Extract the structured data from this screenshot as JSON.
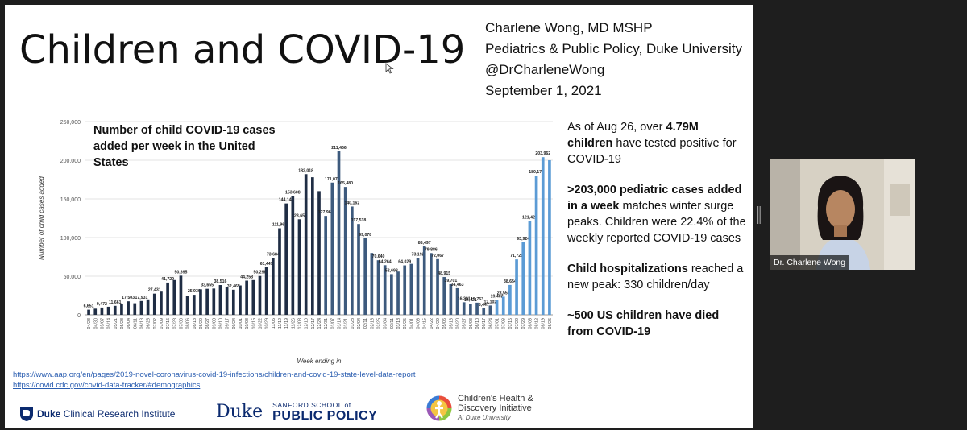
{
  "slide": {
    "title": "Children and COVID-19",
    "author_lines": [
      "Charlene Wong, MD MSHP",
      "Pediatrics & Public Policy, Duke University",
      "@DrCharleneWong",
      "September 1, 2021"
    ],
    "chart_heading": "Number of child COVID-19 cases added per week in the United States",
    "facts": [
      {
        "parts": [
          {
            "t": "As of Aug 26, over ",
            "b": false
          },
          {
            "t": "4.79M children",
            "b": true
          },
          {
            "t": " have tested positive for COVID-19",
            "b": false
          }
        ]
      },
      {
        "parts": [
          {
            "t": ">203,000 pediatric cases added in a week",
            "b": true
          },
          {
            "t": " matches winter surge peaks. Children were 22.4% of the weekly reported COVID-19 cases",
            "b": false
          }
        ]
      },
      {
        "parts": [
          {
            "t": "Child hospitalizations",
            "b": true
          },
          {
            "t": " reached a new peak: 330 children/day",
            "b": false
          }
        ]
      },
      {
        "parts": [
          {
            "t": "~500 US children have died from COVID-19",
            "b": true
          }
        ]
      }
    ],
    "links": [
      "https://www.aap.org/en/pages/2019-novel-coronavirus-covid-19-infections/children-and-covid-19-state-level-data-report",
      "https://covid.cdc.gov/covid-data-tracker/#demographics"
    ],
    "logos": {
      "dcri_prefix": "Duke",
      "dcri_rest": "Clinical Research Institute",
      "duke_word": "Duke",
      "sps_top": "SANFORD SCHOOL of",
      "sps_bottom": "PUBLIC POLICY",
      "chdi_line1": "Children's Health &",
      "chdi_line2": "Discovery Initiative",
      "chdi_line3": "At Duke University"
    }
  },
  "video": {
    "participant_name": "Dr. Charlene Wong"
  },
  "chart_data": {
    "type": "bar",
    "title": "Number of child COVID-19 cases added per week in the United States",
    "xlabel": "Week ending in",
    "ylabel": "Number of child cases added",
    "ylim": [
      0,
      250000
    ],
    "yticks": [
      0,
      50000,
      100000,
      150000,
      200000,
      250000
    ],
    "ytick_labels": [
      "0",
      "50,000",
      "100,000",
      "150,000",
      "200,000",
      "250,000"
    ],
    "grid": true,
    "categories": [
      "04/23",
      "04/30",
      "05/07",
      "05/14",
      "05/21",
      "05/28",
      "06/04",
      "06/11",
      "06/18",
      "06/25",
      "07/02",
      "07/09",
      "07/16",
      "07/23",
      "07/30",
      "08/06",
      "08/13",
      "08/20",
      "08/27",
      "09/03",
      "09/10",
      "09/17",
      "09/24",
      "10/01",
      "10/08",
      "10/15",
      "10/22",
      "10/29",
      "11/05",
      "11/12",
      "11/19",
      "11/26",
      "12/03",
      "12/10",
      "12/17",
      "12/24",
      "12/31",
      "01/07",
      "01/14",
      "01/21",
      "01/28",
      "02/04",
      "02/11",
      "02/18",
      "02/25",
      "03/04",
      "03/11",
      "03/18",
      "03/25",
      "04/01",
      "04/08",
      "04/15",
      "04/22",
      "04/29",
      "05/06",
      "05/13",
      "05/20",
      "05/27",
      "06/03",
      "06/10",
      "06/17",
      "06/24",
      "07/01",
      "07/08",
      "07/15",
      "07/22",
      "07/29",
      "08/05",
      "08/12",
      "08/19",
      "08/26"
    ],
    "values": [
      6651,
      8000,
      9472,
      10500,
      11661,
      14000,
      17503,
      15000,
      17931,
      20000,
      27431,
      30000,
      41729,
      45000,
      50695,
      25000,
      25936,
      33000,
      33655,
      34000,
      38516,
      36000,
      32465,
      38000,
      44258,
      45000,
      50296,
      61447,
      73684,
      111963,
      144140,
      153608,
      123658,
      182018,
      178000,
      160000,
      127966,
      171079,
      211466,
      165480,
      140162,
      117518,
      99078,
      80000,
      70640,
      64264,
      52698,
      56000,
      64029,
      66000,
      73192,
      88497,
      79886,
      72067,
      48915,
      39701,
      34463,
      16281,
      14421,
      15763,
      8447,
      12102,
      19402,
      23551,
      38654,
      71726,
      93924,
      121427,
      180179,
      203962,
      200000
    ],
    "value_labels": [
      "6,651",
      "",
      "9,472",
      "",
      "11,661",
      "",
      "17,503",
      "",
      "17,931",
      "",
      "27,431",
      "",
      "41,729",
      "",
      "50,695",
      "",
      "25,936",
      "",
      "33,655",
      "",
      "38,516",
      "",
      "32,465",
      "",
      "44,258",
      "",
      "50,296",
      "61,447",
      "73,684",
      "111,963",
      "144,140",
      "153,608",
      "123,658",
      "182,018",
      "",
      "",
      "127,966",
      "171,079",
      "211,466",
      "165,480",
      "140,162",
      "117,518",
      "99,078",
      "",
      "70,640",
      "64,264",
      "52,698",
      "",
      "64,029",
      "",
      "73,192",
      "88,497",
      "79,886",
      "72,067",
      "48,915",
      "39,701",
      "34,463",
      "16,281",
      "14,421",
      "15,763",
      "8,447",
      "12,102",
      "19,402",
      "23,551",
      "38,654",
      "71,726",
      "93,924",
      "121,427",
      "180,179",
      "203,962",
      ""
    ],
    "colors": {
      "dark": "#1f2d44",
      "mid": "#3d5a7d",
      "light": "#5b9bd5"
    }
  }
}
